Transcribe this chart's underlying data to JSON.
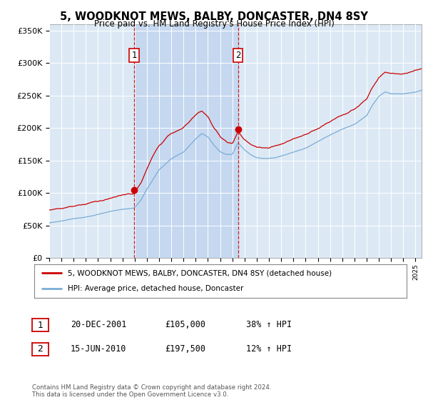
{
  "title": "5, WOODKNOT MEWS, BALBY, DONCASTER, DN4 8SY",
  "subtitle": "Price paid vs. HM Land Registry's House Price Index (HPI)",
  "legend_line1": "5, WOODKNOT MEWS, BALBY, DONCASTER, DN4 8SY (detached house)",
  "legend_line2": "HPI: Average price, detached house, Doncaster",
  "transaction1_date": "20-DEC-2001",
  "transaction1_price": "£105,000",
  "transaction1_hpi": "38% ↑ HPI",
  "transaction1_year": 2001.96,
  "transaction1_value": 105000,
  "transaction2_date": "15-JUN-2010",
  "transaction2_price": "£197,500",
  "transaction2_hpi": "12% ↑ HPI",
  "transaction2_year": 2010.46,
  "transaction2_value": 197500,
  "footer": "Contains HM Land Registry data © Crown copyright and database right 2024.\nThis data is licensed under the Open Government Licence v3.0.",
  "ylim": [
    0,
    360000
  ],
  "yticks": [
    0,
    50000,
    100000,
    150000,
    200000,
    250000,
    300000,
    350000
  ],
  "ytick_labels": [
    "£0",
    "£50K",
    "£100K",
    "£150K",
    "£200K",
    "£250K",
    "£300K",
    "£350K"
  ],
  "xlim_start": 1995.0,
  "xlim_end": 2025.5,
  "background_color": "#ffffff",
  "plot_bg_color": "#dce9f5",
  "shade_color": "#c5d8f0",
  "grid_color": "#ffffff",
  "red_line_color": "#cc0000",
  "blue_line_color": "#7aacd6",
  "marker_color": "#cc0000",
  "vline_color": "#cc0000"
}
